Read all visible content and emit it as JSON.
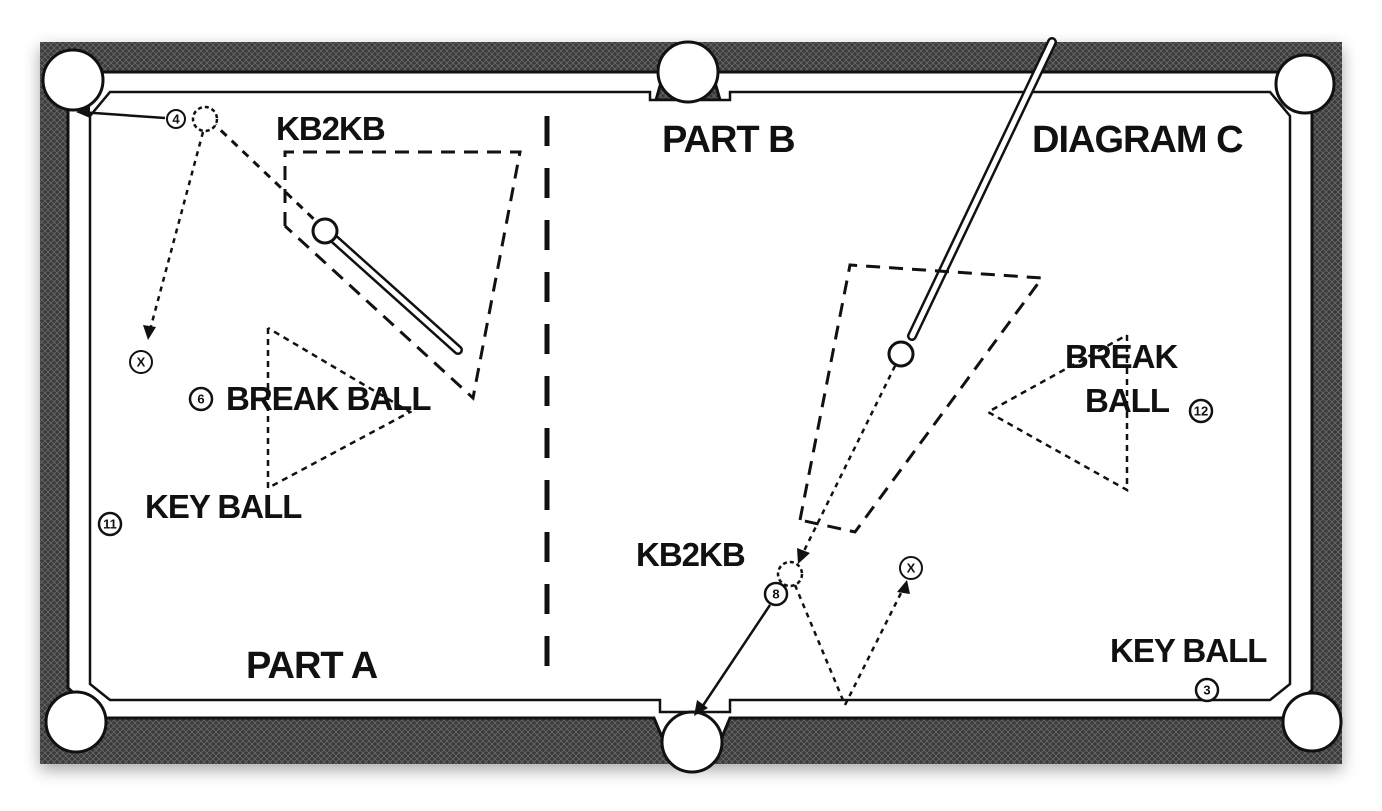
{
  "diagram": {
    "title": "DIAGRAM C",
    "part_a": {
      "label": "PART A",
      "kb2kb_label": "KB2KB",
      "break_ball_label": "BREAK BALL",
      "key_ball_label": "KEY BALL",
      "balls": [
        "4",
        "6",
        "11"
      ],
      "target_mark": "X"
    },
    "part_b": {
      "label": "PART B",
      "kb2kb_label": "KB2KB",
      "break_label_line1": "BREAK",
      "break_label_line2": "BALL",
      "key_ball_label": "KEY BALL",
      "balls": [
        "8",
        "12",
        "3"
      ],
      "target_mark": "X"
    }
  },
  "colors": {
    "rail": "#2a2a2a",
    "cloth": "#ffffff",
    "ink": "#111111"
  }
}
